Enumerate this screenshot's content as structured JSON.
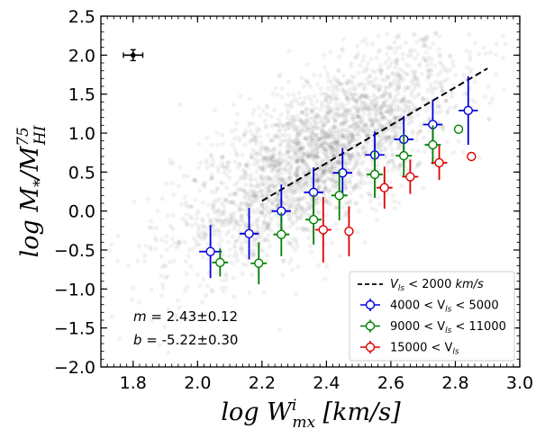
{
  "chart_data": {
    "type": "scatter",
    "xlabel": "log Wₘₓⁱ [km/s]",
    "xlabel_parts": {
      "base": "log W",
      "sup": "i",
      "sub": "mx",
      "unit": " [km/s]"
    },
    "ylabel": "log M*/M_HI^75",
    "ylabel_parts": {
      "base": "log M",
      "sub1": "*",
      "slash": "/M",
      "sup": "75",
      "sub2": "HI"
    },
    "xlim": [
      1.7,
      3.0
    ],
    "ylim": [
      -2.0,
      2.5
    ],
    "x_ticks": [
      1.8,
      2.0,
      2.2,
      2.4,
      2.6,
      2.8,
      3.0
    ],
    "x_tick_labels": [
      "1.8",
      "2.0",
      "2.2",
      "2.4",
      "2.6",
      "2.8",
      "3.0"
    ],
    "y_ticks": [
      -2.0,
      -1.5,
      -1.0,
      -0.5,
      0.0,
      0.5,
      1.0,
      1.5,
      2.0,
      2.5
    ],
    "y_tick_labels": [
      "−2.0",
      "−1.5",
      "−1.0",
      "−0.5",
      "0.0",
      "0.5",
      "1.0",
      "1.5",
      "2.0",
      "2.5"
    ],
    "grid": false,
    "legend_position": "lower-right",
    "background_cloud": {
      "color": "#000000",
      "center_slope": 2.43,
      "center_intercept": -5.22
    },
    "fit_line": {
      "label": "V_ls < 2000 km/s",
      "label_parts": {
        "v": "V",
        "sub": "ls",
        "rest": " < 2000 ",
        "unit": "km/s"
      },
      "style": "dashed",
      "color": "#000000",
      "x": [
        2.2,
        2.9
      ],
      "y": [
        0.13,
        1.83
      ]
    },
    "series": [
      {
        "name": "4000 < V_ls < 5000",
        "label_parts": {
          "pre": "4000 < V",
          "sub": "ls",
          "post": " < 5000"
        },
        "color": "#0000dd",
        "points": [
          {
            "x": 2.04,
            "y": -0.52,
            "xerr": 0.035,
            "yerr": 0.34
          },
          {
            "x": 2.16,
            "y": -0.29,
            "xerr": 0.03,
            "yerr": 0.33
          },
          {
            "x": 2.26,
            "y": 0.0,
            "xerr": 0.03,
            "yerr": 0.34
          },
          {
            "x": 2.36,
            "y": 0.24,
            "xerr": 0.03,
            "yerr": 0.32
          },
          {
            "x": 2.45,
            "y": 0.49,
            "xerr": 0.03,
            "yerr": 0.32
          },
          {
            "x": 2.55,
            "y": 0.72,
            "xerr": 0.03,
            "yerr": 0.3
          },
          {
            "x": 2.64,
            "y": 0.92,
            "xerr": 0.03,
            "yerr": 0.3
          },
          {
            "x": 2.73,
            "y": 1.11,
            "xerr": 0.03,
            "yerr": 0.32
          },
          {
            "x": 2.84,
            "y": 1.29,
            "xerr": 0.03,
            "yerr": 0.44
          }
        ]
      },
      {
        "name": "9000 < V_ls < 11000",
        "label_parts": {
          "pre": "9000 < V",
          "sub": "ls",
          "post": " < 11000"
        },
        "color": "#008000",
        "points": [
          {
            "x": 2.07,
            "y": -0.66,
            "xerr": 0.025,
            "yerr": 0.18
          },
          {
            "x": 2.19,
            "y": -0.67,
            "xerr": 0.025,
            "yerr": 0.27
          },
          {
            "x": 2.26,
            "y": -0.3,
            "xerr": 0.025,
            "yerr": 0.28
          },
          {
            "x": 2.36,
            "y": -0.11,
            "xerr": 0.025,
            "yerr": 0.32
          },
          {
            "x": 2.44,
            "y": 0.2,
            "xerr": 0.025,
            "yerr": 0.32
          },
          {
            "x": 2.55,
            "y": 0.47,
            "xerr": 0.025,
            "yerr": 0.3
          },
          {
            "x": 2.64,
            "y": 0.71,
            "xerr": 0.025,
            "yerr": 0.28
          },
          {
            "x": 2.73,
            "y": 0.85,
            "xerr": 0.025,
            "yerr": 0.25
          },
          {
            "x": 2.81,
            "y": 1.05,
            "xerr": 0.0,
            "yerr": 0.0
          }
        ]
      },
      {
        "name": "15000 < V_ls",
        "label_parts": {
          "pre": "15000 < V",
          "sub": "ls",
          "post": ""
        },
        "color": "#dd0000",
        "points": [
          {
            "x": 2.39,
            "y": -0.24,
            "xerr": 0.025,
            "yerr": 0.42
          },
          {
            "x": 2.47,
            "y": -0.26,
            "xerr": 0.0,
            "yerr": 0.32
          },
          {
            "x": 2.58,
            "y": 0.3,
            "xerr": 0.025,
            "yerr": 0.27
          },
          {
            "x": 2.66,
            "y": 0.44,
            "xerr": 0.025,
            "yerr": 0.22
          },
          {
            "x": 2.75,
            "y": 0.62,
            "xerr": 0.025,
            "yerr": 0.22
          },
          {
            "x": 2.85,
            "y": 0.7,
            "xerr": 0.0,
            "yerr": 0.0
          }
        ]
      }
    ],
    "typical_error": {
      "x": 1.8,
      "y": 2.0,
      "xerr": 0.03,
      "yerr": 0.07,
      "color": "#000000"
    },
    "annotations": {
      "m_label": "m = 2.43±0.12",
      "m_parts": {
        "var": "m",
        "val": " = 2.43±0.12"
      },
      "b_label": "b = -5.22±0.30",
      "b_parts": {
        "var": "b",
        "val": " = -5.22±0.30"
      }
    }
  }
}
